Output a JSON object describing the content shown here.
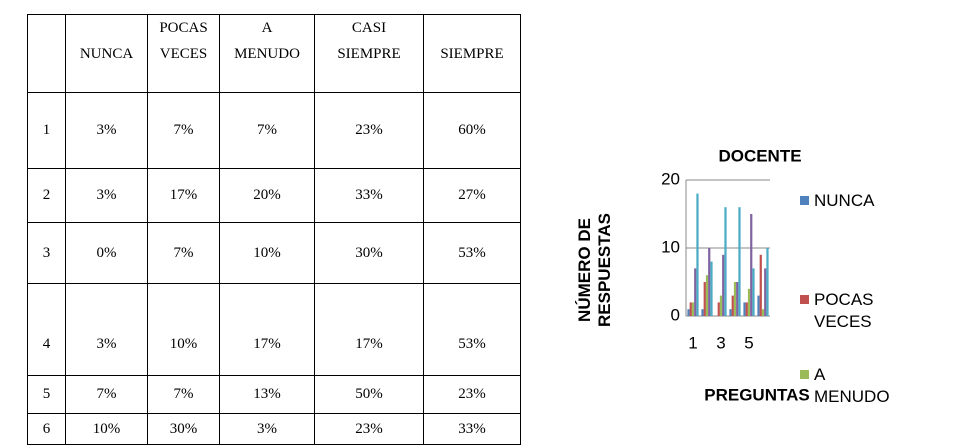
{
  "table": {
    "header": [
      [],
      [
        "NUNCA"
      ],
      [
        "POCAS",
        "VECES"
      ],
      [
        "A",
        "MENUDO"
      ],
      [
        "CASI",
        "SIEMPRE"
      ],
      [
        "SIEMPRE"
      ]
    ],
    "rows": [
      [
        "1",
        "3%",
        "7%",
        "7%",
        "23%",
        "60%"
      ],
      [
        "2",
        "3%",
        "17%",
        "20%",
        "33%",
        "27%"
      ],
      [
        "3",
        "0%",
        "7%",
        "10%",
        "30%",
        "53%"
      ],
      [
        "4",
        "3%",
        "10%",
        "17%",
        "17%",
        "53%"
      ],
      [
        "5",
        "7%",
        "7%",
        "13%",
        "50%",
        "23%"
      ],
      [
        "6",
        "10%",
        "30%",
        "3%",
        "23%",
        "33%"
      ]
    ]
  },
  "chart_data": {
    "type": "bar",
    "title": "DOCENTE",
    "x_label": "PREGUNTAS",
    "y_label": "NÚMERO DE RESPUESTAS",
    "categories": [
      "1",
      null,
      "3",
      null,
      "5",
      null
    ],
    "series": [
      {
        "name": "NUNCA",
        "color": "#4f81bd",
        "values": [
          1,
          1,
          0,
          1,
          2,
          3
        ]
      },
      {
        "name": "POCAS VECES",
        "color": "#c0504d",
        "values": [
          2,
          5,
          2,
          3,
          2,
          9
        ]
      },
      {
        "name": "A MENUDO",
        "color": "#9bbb59",
        "values": [
          2,
          6,
          3,
          5,
          4,
          1
        ]
      },
      {
        "color": "#8064a2",
        "values": [
          7,
          10,
          9,
          5,
          15,
          7
        ]
      },
      {
        "color": "#4bacc6",
        "values": [
          18,
          8,
          16,
          16,
          7,
          10
        ]
      }
    ],
    "ylim": [
      0,
      20
    ],
    "yticks": [
      0,
      10,
      20
    ],
    "grid": true
  }
}
